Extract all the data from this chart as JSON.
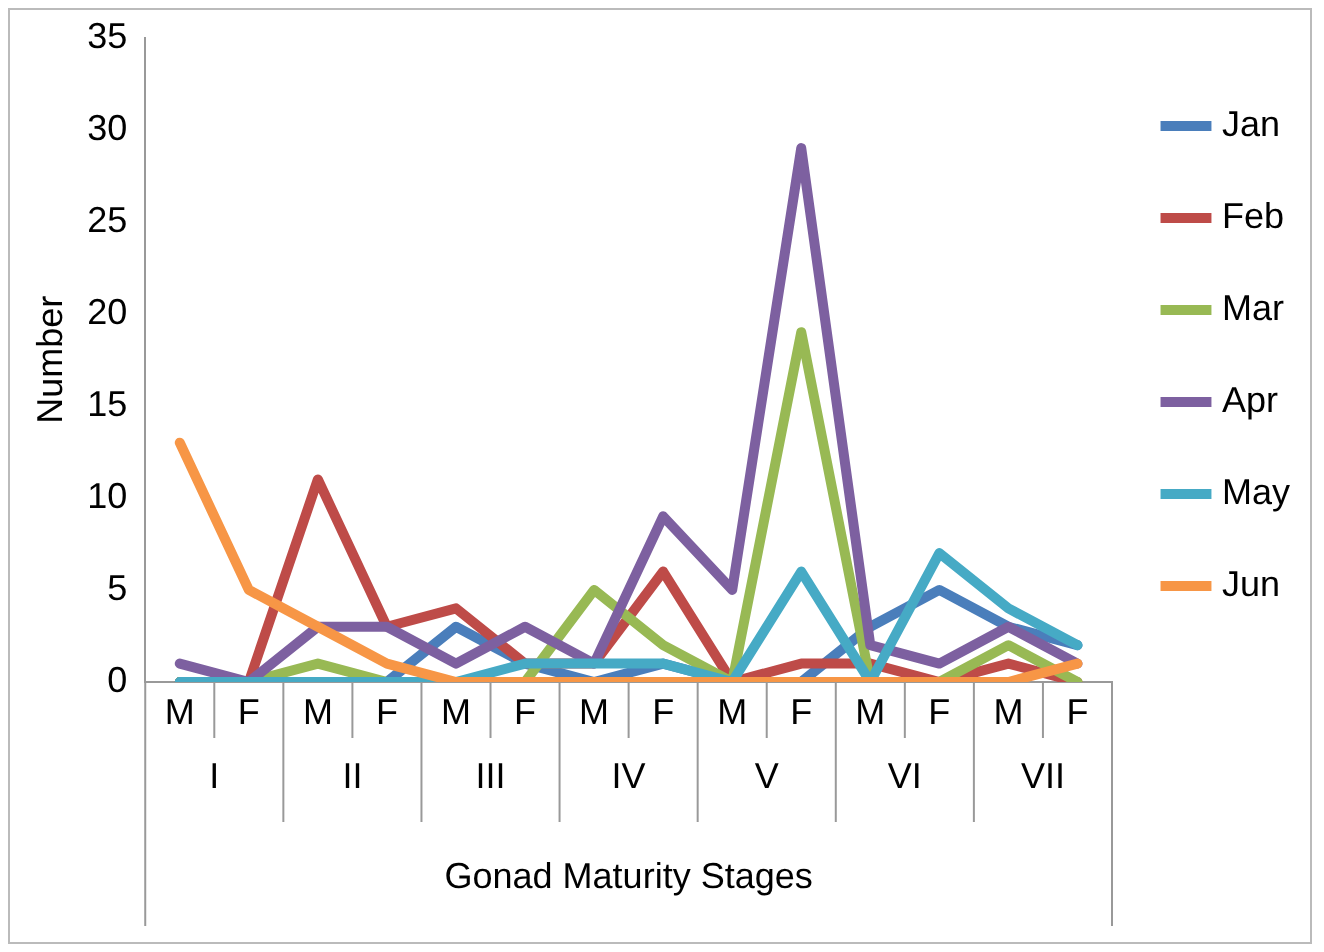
{
  "chart_data": {
    "type": "line",
    "xlabel": "Gonad Maturity Stages",
    "ylabel": "Number",
    "categories": [
      "M",
      "F",
      "M",
      "F",
      "M",
      "F",
      "M",
      "F",
      "M",
      "F",
      "M",
      "F",
      "M",
      "F"
    ],
    "annotations": [
      "I",
      "II",
      "III",
      "IV",
      "V",
      "VI",
      "VII"
    ],
    "ylim": [
      0,
      35
    ],
    "yticks": [
      0,
      5,
      10,
      15,
      20,
      25,
      30,
      35
    ],
    "grid": false,
    "legend": "right",
    "marker": "none",
    "series": [
      {
        "name": "Jan",
        "color": "#4a7ebb",
        "values": [
          0,
          0,
          0,
          0,
          3,
          1,
          0,
          1,
          0,
          0,
          3,
          5,
          3,
          2
        ]
      },
      {
        "name": "Feb",
        "color": "#be4b48",
        "values": [
          0,
          0,
          11,
          3,
          4,
          1,
          1,
          6,
          0,
          1,
          1,
          0,
          1,
          0
        ]
      },
      {
        "name": "Mar",
        "color": "#98b954",
        "values": [
          0,
          0,
          1,
          0,
          0,
          0,
          5,
          2,
          0,
          19,
          0,
          0,
          2,
          0
        ]
      },
      {
        "name": "Apr",
        "color": "#7d60a0",
        "values": [
          1,
          0,
          3,
          3,
          1,
          3,
          1,
          9,
          5,
          29,
          2,
          1,
          3,
          1
        ]
      },
      {
        "name": "May",
        "color": "#46aac5",
        "values": [
          0,
          0,
          0,
          0,
          0,
          1,
          1,
          1,
          0,
          6,
          0,
          7,
          4,
          2
        ]
      },
      {
        "name": "Jun",
        "color": "#f79646",
        "values": [
          13,
          5,
          3,
          1,
          0,
          0,
          0,
          0,
          0,
          0,
          0,
          0,
          0,
          1
        ]
      }
    ]
  }
}
